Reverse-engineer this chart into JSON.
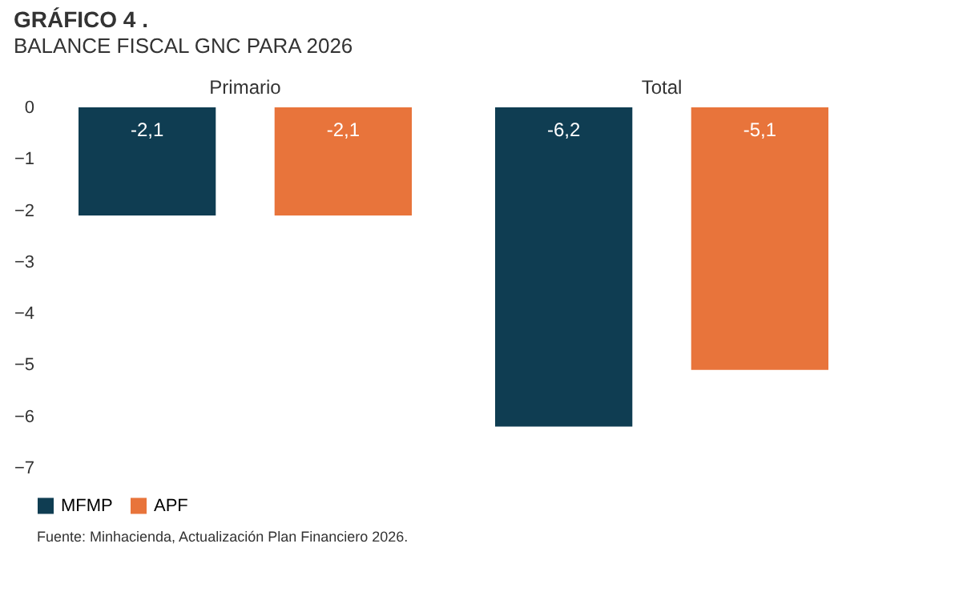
{
  "chart_data": {
    "type": "bar",
    "title": "GRÁFICO 4 .",
    "subtitle": "BALANCE FISCAL GNC PARA 2026",
    "categories": [
      "Primario",
      "Total"
    ],
    "series": [
      {
        "name": "MFMP",
        "color": "#0f3d52",
        "values": [
          -2.1,
          -6.2
        ],
        "value_labels": [
          "-2,1",
          "-6,2"
        ]
      },
      {
        "name": "APF",
        "color": "#e8743b",
        "values": [
          -2.1,
          -5.1
        ],
        "value_labels": [
          "-2,1",
          "-5,1"
        ]
      }
    ],
    "ylim": [
      -7,
      0
    ],
    "yticks": [
      -7,
      -6,
      -5,
      -4,
      -3,
      -2,
      -1,
      0
    ],
    "grid": false,
    "legend": "bottom",
    "annotations": [
      "Fuente: Minhacienda, Actualización Plan Financiero 2026."
    ]
  }
}
